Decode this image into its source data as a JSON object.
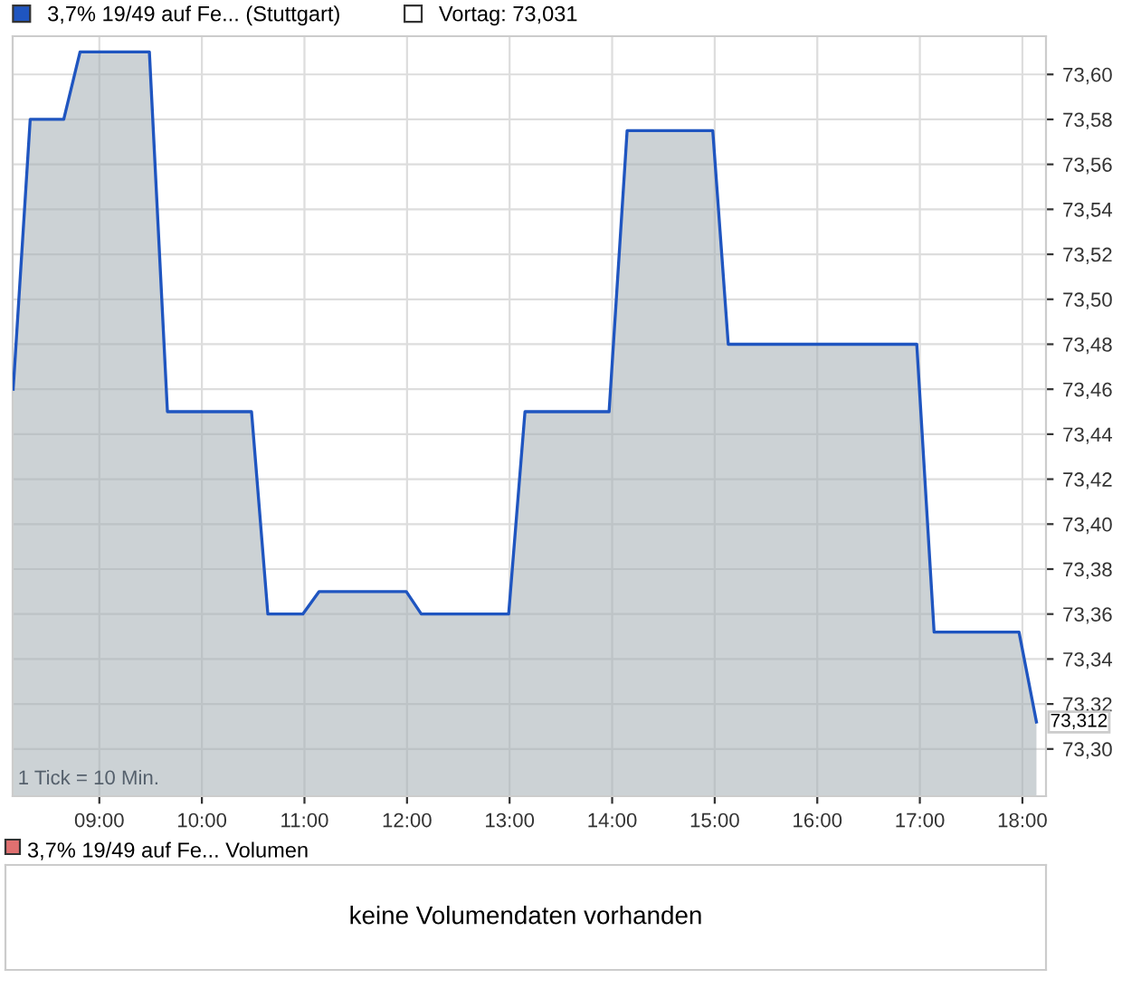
{
  "chart_data": [
    {
      "type": "area",
      "legend": "top left",
      "grid": true,
      "line_style": "solid",
      "x": [
        8.16,
        8.326,
        8.653,
        8.812,
        9.488,
        9.664,
        10.484,
        10.643,
        10.984,
        11.143,
        11.993,
        12.139,
        12.991,
        13.15,
        13.97,
        14.146,
        14.981,
        15.132,
        16.97,
        17.139,
        17.967,
        18.137
      ],
      "series": [
        {
          "name": "3,7% 19/49 auf Fe... (Stuttgart)",
          "color": "#1f55c0",
          "values": [
            73.46,
            73.58,
            73.58,
            73.61,
            73.61,
            73.45,
            73.45,
            73.36,
            73.36,
            73.37,
            73.37,
            73.36,
            73.36,
            73.45,
            73.45,
            73.575,
            73.575,
            73.48,
            73.48,
            73.352,
            73.352,
            73.312
          ]
        }
      ],
      "xlim": [
        8.155,
        18.23
      ],
      "ylim": [
        73.279,
        73.617
      ],
      "xticks": [
        {
          "value": 9,
          "label": "09:00"
        },
        {
          "value": 10,
          "label": "10:00"
        },
        {
          "value": 11,
          "label": "11:00"
        },
        {
          "value": 12,
          "label": "12:00"
        },
        {
          "value": 13,
          "label": "13:00"
        },
        {
          "value": 14,
          "label": "14:00"
        },
        {
          "value": 15,
          "label": "15:00"
        },
        {
          "value": 16,
          "label": "16:00"
        },
        {
          "value": 17,
          "label": "17:00"
        },
        {
          "value": 18,
          "label": "18:00"
        }
      ],
      "yticks": [
        {
          "value": 73.3,
          "label": "73,30"
        },
        {
          "value": 73.32,
          "label": "73,32"
        },
        {
          "value": 73.34,
          "label": "73,34"
        },
        {
          "value": 73.36,
          "label": "73,36"
        },
        {
          "value": 73.38,
          "label": "73,38"
        },
        {
          "value": 73.4,
          "label": "73,40"
        },
        {
          "value": 73.42,
          "label": "73,42"
        },
        {
          "value": 73.44,
          "label": "73,44"
        },
        {
          "value": 73.46,
          "label": "73,46"
        },
        {
          "value": 73.48,
          "label": "73,48"
        },
        {
          "value": 73.5,
          "label": "73,50"
        },
        {
          "value": 73.52,
          "label": "73,52"
        },
        {
          "value": 73.54,
          "label": "73,54"
        },
        {
          "value": 73.56,
          "label": "73,56"
        },
        {
          "value": 73.58,
          "label": "73,58"
        },
        {
          "value": 73.6,
          "label": "73,60"
        }
      ],
      "annotations": [
        "1 Tick = 10 Min.",
        {
          "text": "73,312",
          "y": 73.312
        },
        "Vortag: 73,031"
      ]
    },
    {
      "type": "other",
      "title": "3,7% 19/49 auf Fe... Volumen",
      "annotations": [
        "keine Volumendaten vorhanden"
      ]
    }
  ]
}
